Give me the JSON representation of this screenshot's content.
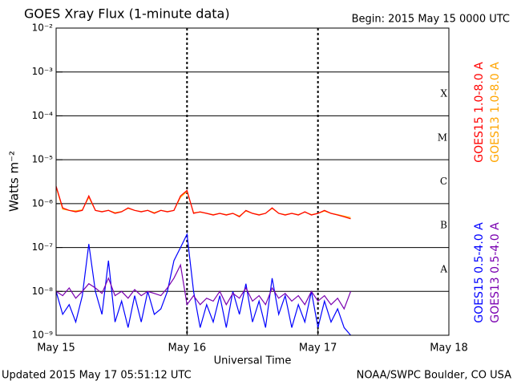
{
  "chart_data": {
    "type": "line",
    "title": "GOES Xray Flux (1-minute data)",
    "subtitle": "Begin:  2015 May 15 0000 UTC",
    "xlabel": "Universal Time",
    "ylabel": "Watts m⁻²",
    "footer_left": "Updated 2015 May 17 05:51:12 UTC",
    "footer_right": "NOAA/SWPC Boulder, CO USA",
    "log_scale_y": true,
    "grid": true,
    "flare_classes": [
      "A",
      "B",
      "C",
      "M",
      "X"
    ],
    "xlim": [
      0,
      3
    ],
    "xticks": [
      {
        "value": 0,
        "label": "May 15"
      },
      {
        "value": 1,
        "label": "May 16"
      },
      {
        "value": 2,
        "label": "May 17"
      },
      {
        "value": 3,
        "label": "May 18"
      }
    ],
    "ylim": [
      1e-09,
      0.01
    ],
    "yticks": [
      {
        "value": 1e-09,
        "label": "10⁻⁹"
      },
      {
        "value": 1e-08,
        "label": "10⁻⁸"
      },
      {
        "value": 1e-07,
        "label": "10⁻⁷"
      },
      {
        "value": 1e-06,
        "label": "10⁻⁶"
      },
      {
        "value": 1e-05,
        "label": "10⁻⁵"
      },
      {
        "value": 0.0001,
        "label": "10⁻⁴"
      },
      {
        "value": 0.001,
        "label": "10⁻³"
      },
      {
        "value": 0.01,
        "label": "10⁻²"
      }
    ],
    "x": [
      0,
      0.05,
      0.1,
      0.15,
      0.2,
      0.25,
      0.3,
      0.35,
      0.4,
      0.45,
      0.5,
      0.55,
      0.6,
      0.65,
      0.7,
      0.75,
      0.8,
      0.85,
      0.9,
      0.95,
      1,
      1.05,
      1.1,
      1.15,
      1.2,
      1.25,
      1.3,
      1.35,
      1.4,
      1.45,
      1.5,
      1.55,
      1.6,
      1.65,
      1.7,
      1.75,
      1.8,
      1.85,
      1.9,
      1.95,
      2,
      2.05,
      2.1,
      2.15,
      2.2,
      2.25
    ],
    "series": [
      {
        "name": "GOES15 1.0-8.0 A",
        "color": "#ff0000",
        "values": [
          2.5e-06,
          8e-07,
          7e-07,
          6.5e-07,
          7e-07,
          1.5e-06,
          7e-07,
          6.5e-07,
          7e-07,
          6e-07,
          6.5e-07,
          8e-07,
          7e-07,
          6.5e-07,
          7e-07,
          6e-07,
          7e-07,
          6.5e-07,
          7e-07,
          1.5e-06,
          2e-06,
          6e-07,
          6.5e-07,
          6e-07,
          5.5e-07,
          6e-07,
          5.5e-07,
          6e-07,
          5e-07,
          7e-07,
          6e-07,
          5.5e-07,
          6e-07,
          8e-07,
          6e-07,
          5.5e-07,
          6e-07,
          5.5e-07,
          6.5e-07,
          5.5e-07,
          6e-07,
          7e-07,
          6e-07,
          5.5e-07,
          5e-07,
          4.5e-07
        ]
      },
      {
        "name": "GOES13 1.0-8.0 A",
        "color": "#ffa500",
        "values": [
          2.4e-06,
          7.5e-07,
          7e-07,
          6.8e-07,
          7.2e-07,
          1.4e-06,
          7e-07,
          6.6e-07,
          7e-07,
          6.2e-07,
          6.6e-07,
          7.8e-07,
          7e-07,
          6.6e-07,
          7e-07,
          6.2e-07,
          7e-07,
          6.6e-07,
          7e-07,
          1.4e-06,
          1.9e-06,
          6.2e-07,
          6.4e-07,
          6e-07,
          5.6e-07,
          6e-07,
          5.6e-07,
          6e-07,
          5.2e-07,
          6.8e-07,
          6e-07,
          5.6e-07,
          6e-07,
          7.8e-07,
          6e-07,
          5.6e-07,
          6e-07,
          5.6e-07,
          6.4e-07,
          5.6e-07,
          6e-07,
          6.8e-07,
          6e-07,
          5.6e-07,
          5.2e-07,
          4.8e-07
        ]
      },
      {
        "name": "GOES15 0.5-4.0 A",
        "color": "#0000ff",
        "values": [
          1e-08,
          3e-09,
          5e-09,
          2e-09,
          8e-09,
          1.2e-07,
          1e-08,
          3e-09,
          5e-08,
          2e-09,
          6e-09,
          1.5e-09,
          8e-09,
          2e-09,
          1e-08,
          3e-09,
          4e-09,
          1e-08,
          5e-08,
          1e-07,
          2e-07,
          1e-08,
          1.5e-09,
          5e-09,
          2e-09,
          8e-09,
          1.5e-09,
          1e-08,
          3e-09,
          1.5e-08,
          2e-09,
          6e-09,
          1.5e-09,
          2e-08,
          3e-09,
          8e-09,
          1.5e-09,
          5e-09,
          2e-09,
          1e-08,
          1.5e-09,
          6e-09,
          2e-09,
          4e-09,
          1.5e-09,
          1e-09
        ]
      },
      {
        "name": "GOES13 0.5-4.0 A",
        "color": "#7a00b0",
        "values": [
          1e-08,
          8e-09,
          1.2e-08,
          7e-09,
          1e-08,
          1.5e-08,
          1.2e-08,
          9e-09,
          2e-08,
          8e-09,
          1e-08,
          7e-09,
          1.1e-08,
          8e-09,
          1e-08,
          9e-09,
          8e-09,
          1.2e-08,
          2e-08,
          4e-08,
          5e-09,
          8e-09,
          5e-09,
          7e-09,
          6e-09,
          1e-08,
          5e-09,
          9e-09,
          7e-09,
          1.2e-08,
          6e-09,
          8e-09,
          5e-09,
          1.2e-08,
          7e-09,
          9e-09,
          6e-09,
          8e-09,
          5e-09,
          1e-08,
          6e-09,
          8e-09,
          5e-09,
          7e-09,
          4e-09,
          1e-08
        ]
      }
    ]
  }
}
